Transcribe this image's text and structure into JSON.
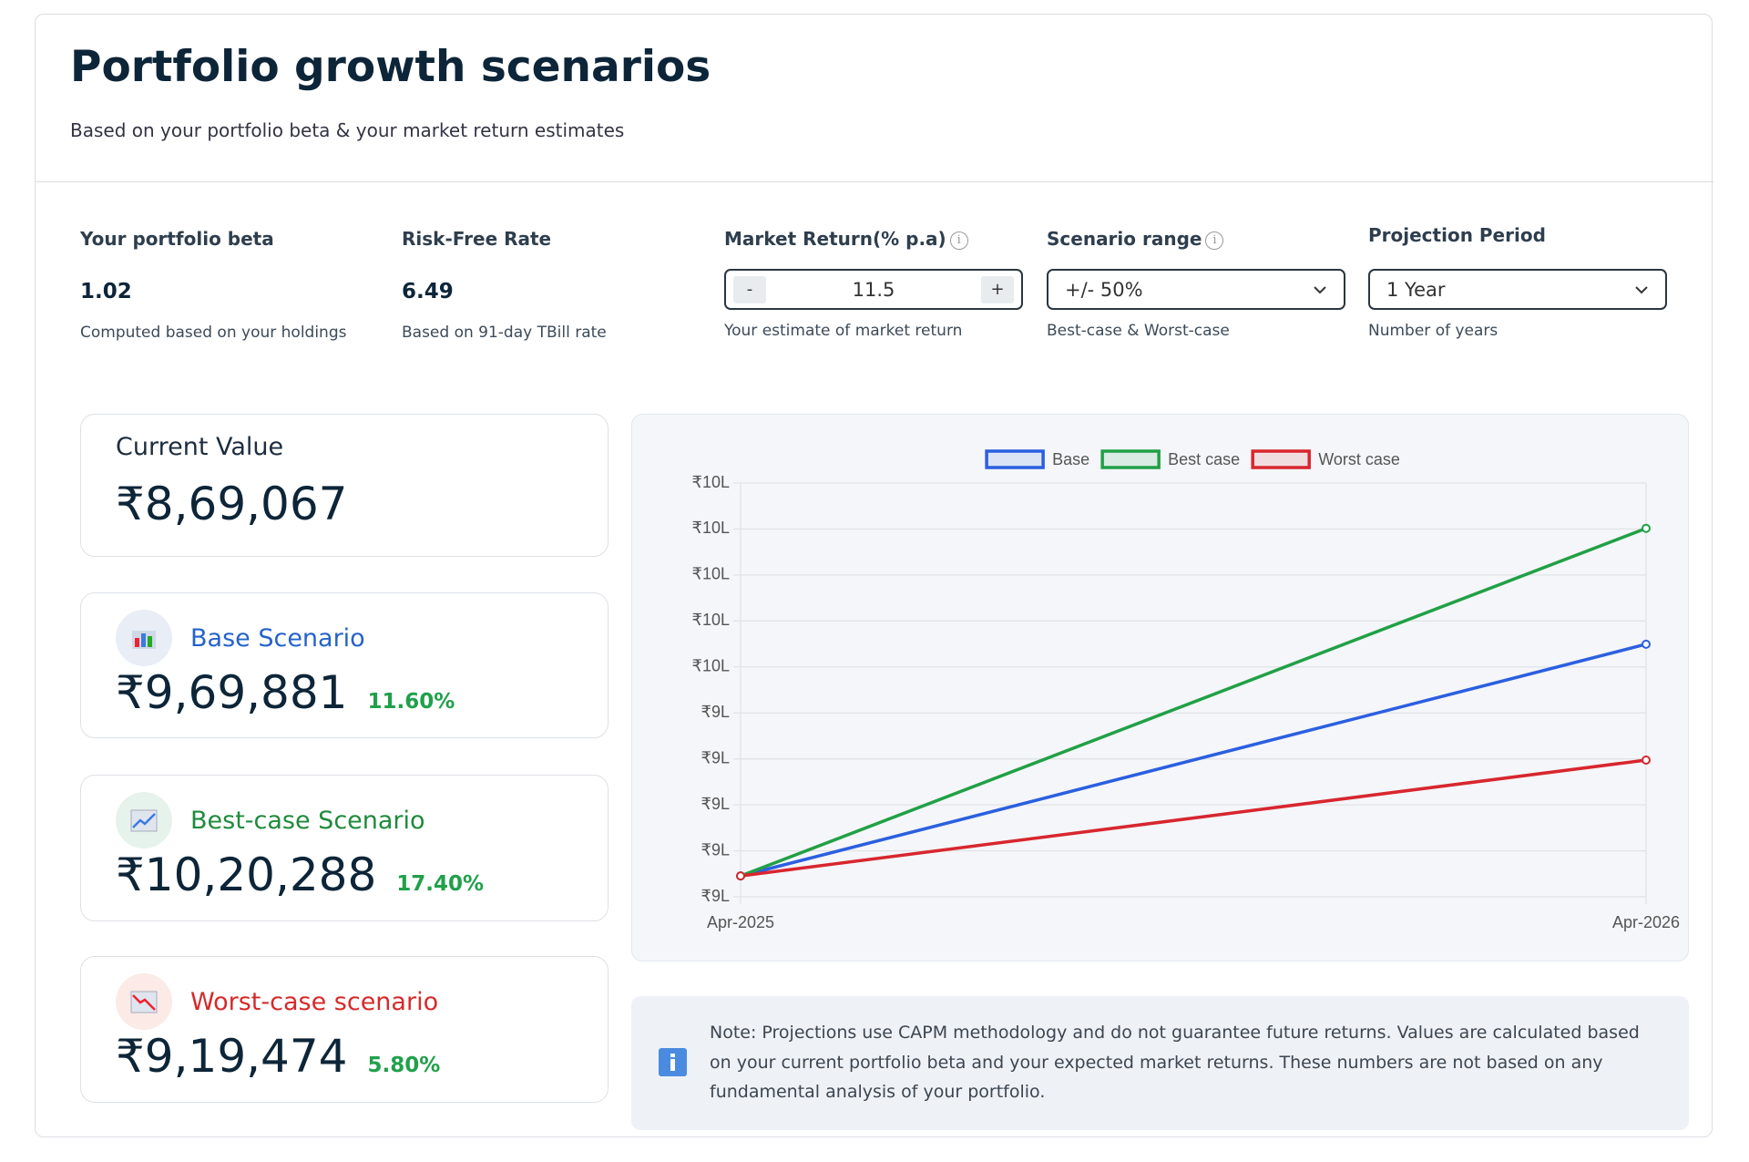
{
  "header": {
    "title": "Portfolio growth scenarios",
    "subtitle": "Based on your portfolio beta & your market return estimates"
  },
  "stats": [
    {
      "label": "Your portfolio beta",
      "value": "1.02",
      "note": "Computed based on your holdings"
    },
    {
      "label": "Risk-Free Rate",
      "value": "6.49",
      "note": "Based on 91-day TBill rate"
    }
  ],
  "inputs": {
    "market_return": {
      "label": "Market Return(% p.a)",
      "minus": "-",
      "value": "11.5",
      "plus": "+",
      "note": "Your estimate of market return"
    },
    "scenario_range": {
      "label": "Scenario range",
      "value": "+/- 50%",
      "note": "Best-case & Worst-case"
    },
    "projection_period": {
      "label": "Projection Period",
      "value": "1 Year",
      "note": "Number of years"
    }
  },
  "current_value": {
    "label": "Current Value",
    "value": "₹8,69,067"
  },
  "scenarios": [
    {
      "label": "Base Scenario",
      "value": "₹9,69,881",
      "change": "11.60%"
    },
    {
      "label": "Best-case Scenario",
      "value": "₹10,20,288",
      "change": "17.40%"
    },
    {
      "label": "Worst-case scenario",
      "value": "₹9,19,474",
      "change": "5.80%"
    }
  ],
  "chart_data": {
    "type": "line",
    "categories": [
      "Apr-2025",
      "Apr-2026"
    ],
    "series": [
      {
        "name": "Base",
        "color": "#2b5fe0",
        "values": [
          869067,
          969881
        ]
      },
      {
        "name": "Best case",
        "color": "#21a046",
        "values": [
          869067,
          1020288
        ]
      },
      {
        "name": "Worst case",
        "color": "#d8262e",
        "values": [
          869067,
          919474
        ]
      }
    ],
    "ylim": [
      860000,
      1040000
    ],
    "yticks": [
      {
        "value": 860000,
        "label": "₹9L"
      },
      {
        "value": 880000,
        "label": "₹9L"
      },
      {
        "value": 900000,
        "label": "₹9L"
      },
      {
        "value": 920000,
        "label": "₹9L"
      },
      {
        "value": 940000,
        "label": "₹9L"
      },
      {
        "value": 960000,
        "label": "₹10L"
      },
      {
        "value": 980000,
        "label": "₹10L"
      },
      {
        "value": 1000000,
        "label": "₹10L"
      },
      {
        "value": 1020000,
        "label": "₹10L"
      },
      {
        "value": 1040000,
        "label": "₹10L"
      }
    ],
    "grid": true,
    "legend": "top"
  },
  "note": "Note: Projections use CAPM methodology and do not guarantee future returns. Values are calculated based on your current portfolio beta and your expected market returns. These numbers are not based on any fundamental analysis of your portfolio."
}
